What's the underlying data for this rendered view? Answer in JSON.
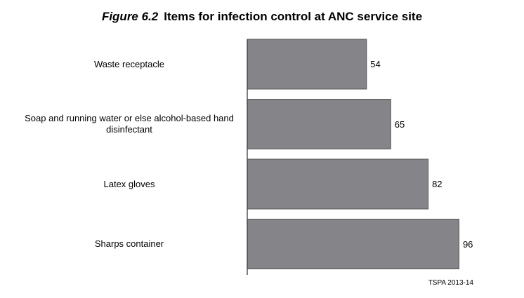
{
  "figure": {
    "number": "Figure 6.2",
    "title": "Items for infection control at ANC service site"
  },
  "chart_data": {
    "type": "bar",
    "orientation": "horizontal",
    "categories": [
      "Waste receptacle",
      "Soap and running water or else alcohol-based hand disinfectant",
      "Latex gloves",
      "Sharps container"
    ],
    "values": [
      54,
      65,
      82,
      96
    ],
    "xlim": [
      0,
      100
    ],
    "bar_color": "#858589",
    "bar_edge_color": "#555555",
    "grid": false
  },
  "source": "TSPA 2013-14"
}
